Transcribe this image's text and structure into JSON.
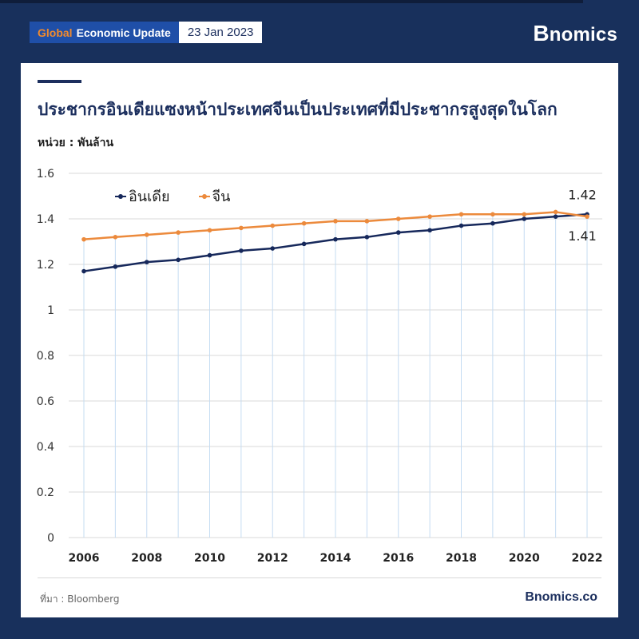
{
  "header": {
    "tag_accent": "Global",
    "tag_rest": "Economic Update",
    "date": "23 Jan 2023",
    "brand_initial": "B",
    "brand_rest": "nomics"
  },
  "title": "ประชากรอินเดียแซงหน้าประเทศจีนเป็นประเทศที่มีประชากรสูงสุดในโลก",
  "unit": "หน่วย : พันล้าน",
  "footer": {
    "source": "ที่มา : Bloomberg",
    "brand": "Bnomics.co"
  },
  "colors": {
    "india": "#16285b",
    "china": "#ec8a3c",
    "grid": "#d9d9d9",
    "vline": "#c5dcf2"
  },
  "chart_data": {
    "type": "line",
    "x": [
      2006,
      2007,
      2008,
      2009,
      2010,
      2011,
      2012,
      2013,
      2014,
      2015,
      2016,
      2017,
      2018,
      2019,
      2020,
      2021,
      2022
    ],
    "xticks": [
      "2006",
      "2008",
      "2010",
      "2012",
      "2014",
      "2016",
      "2018",
      "2020",
      "2022"
    ],
    "yticks": [
      "0",
      "0.2",
      "0.4",
      "0.6",
      "0.8",
      "1",
      "1.2",
      "1.4",
      "1.6"
    ],
    "ylim": [
      0,
      1.6
    ],
    "grid": true,
    "legend_position": "top-left",
    "series": [
      {
        "name": "อินเดีย",
        "values": [
          1.17,
          1.19,
          1.21,
          1.22,
          1.24,
          1.26,
          1.27,
          1.29,
          1.31,
          1.32,
          1.34,
          1.35,
          1.37,
          1.38,
          1.4,
          1.41,
          1.42
        ],
        "end_label": "1.42"
      },
      {
        "name": "จีน",
        "values": [
          1.31,
          1.32,
          1.33,
          1.34,
          1.35,
          1.36,
          1.37,
          1.38,
          1.39,
          1.39,
          1.4,
          1.41,
          1.42,
          1.42,
          1.42,
          1.43,
          1.41
        ],
        "end_label": "1.41"
      }
    ]
  }
}
